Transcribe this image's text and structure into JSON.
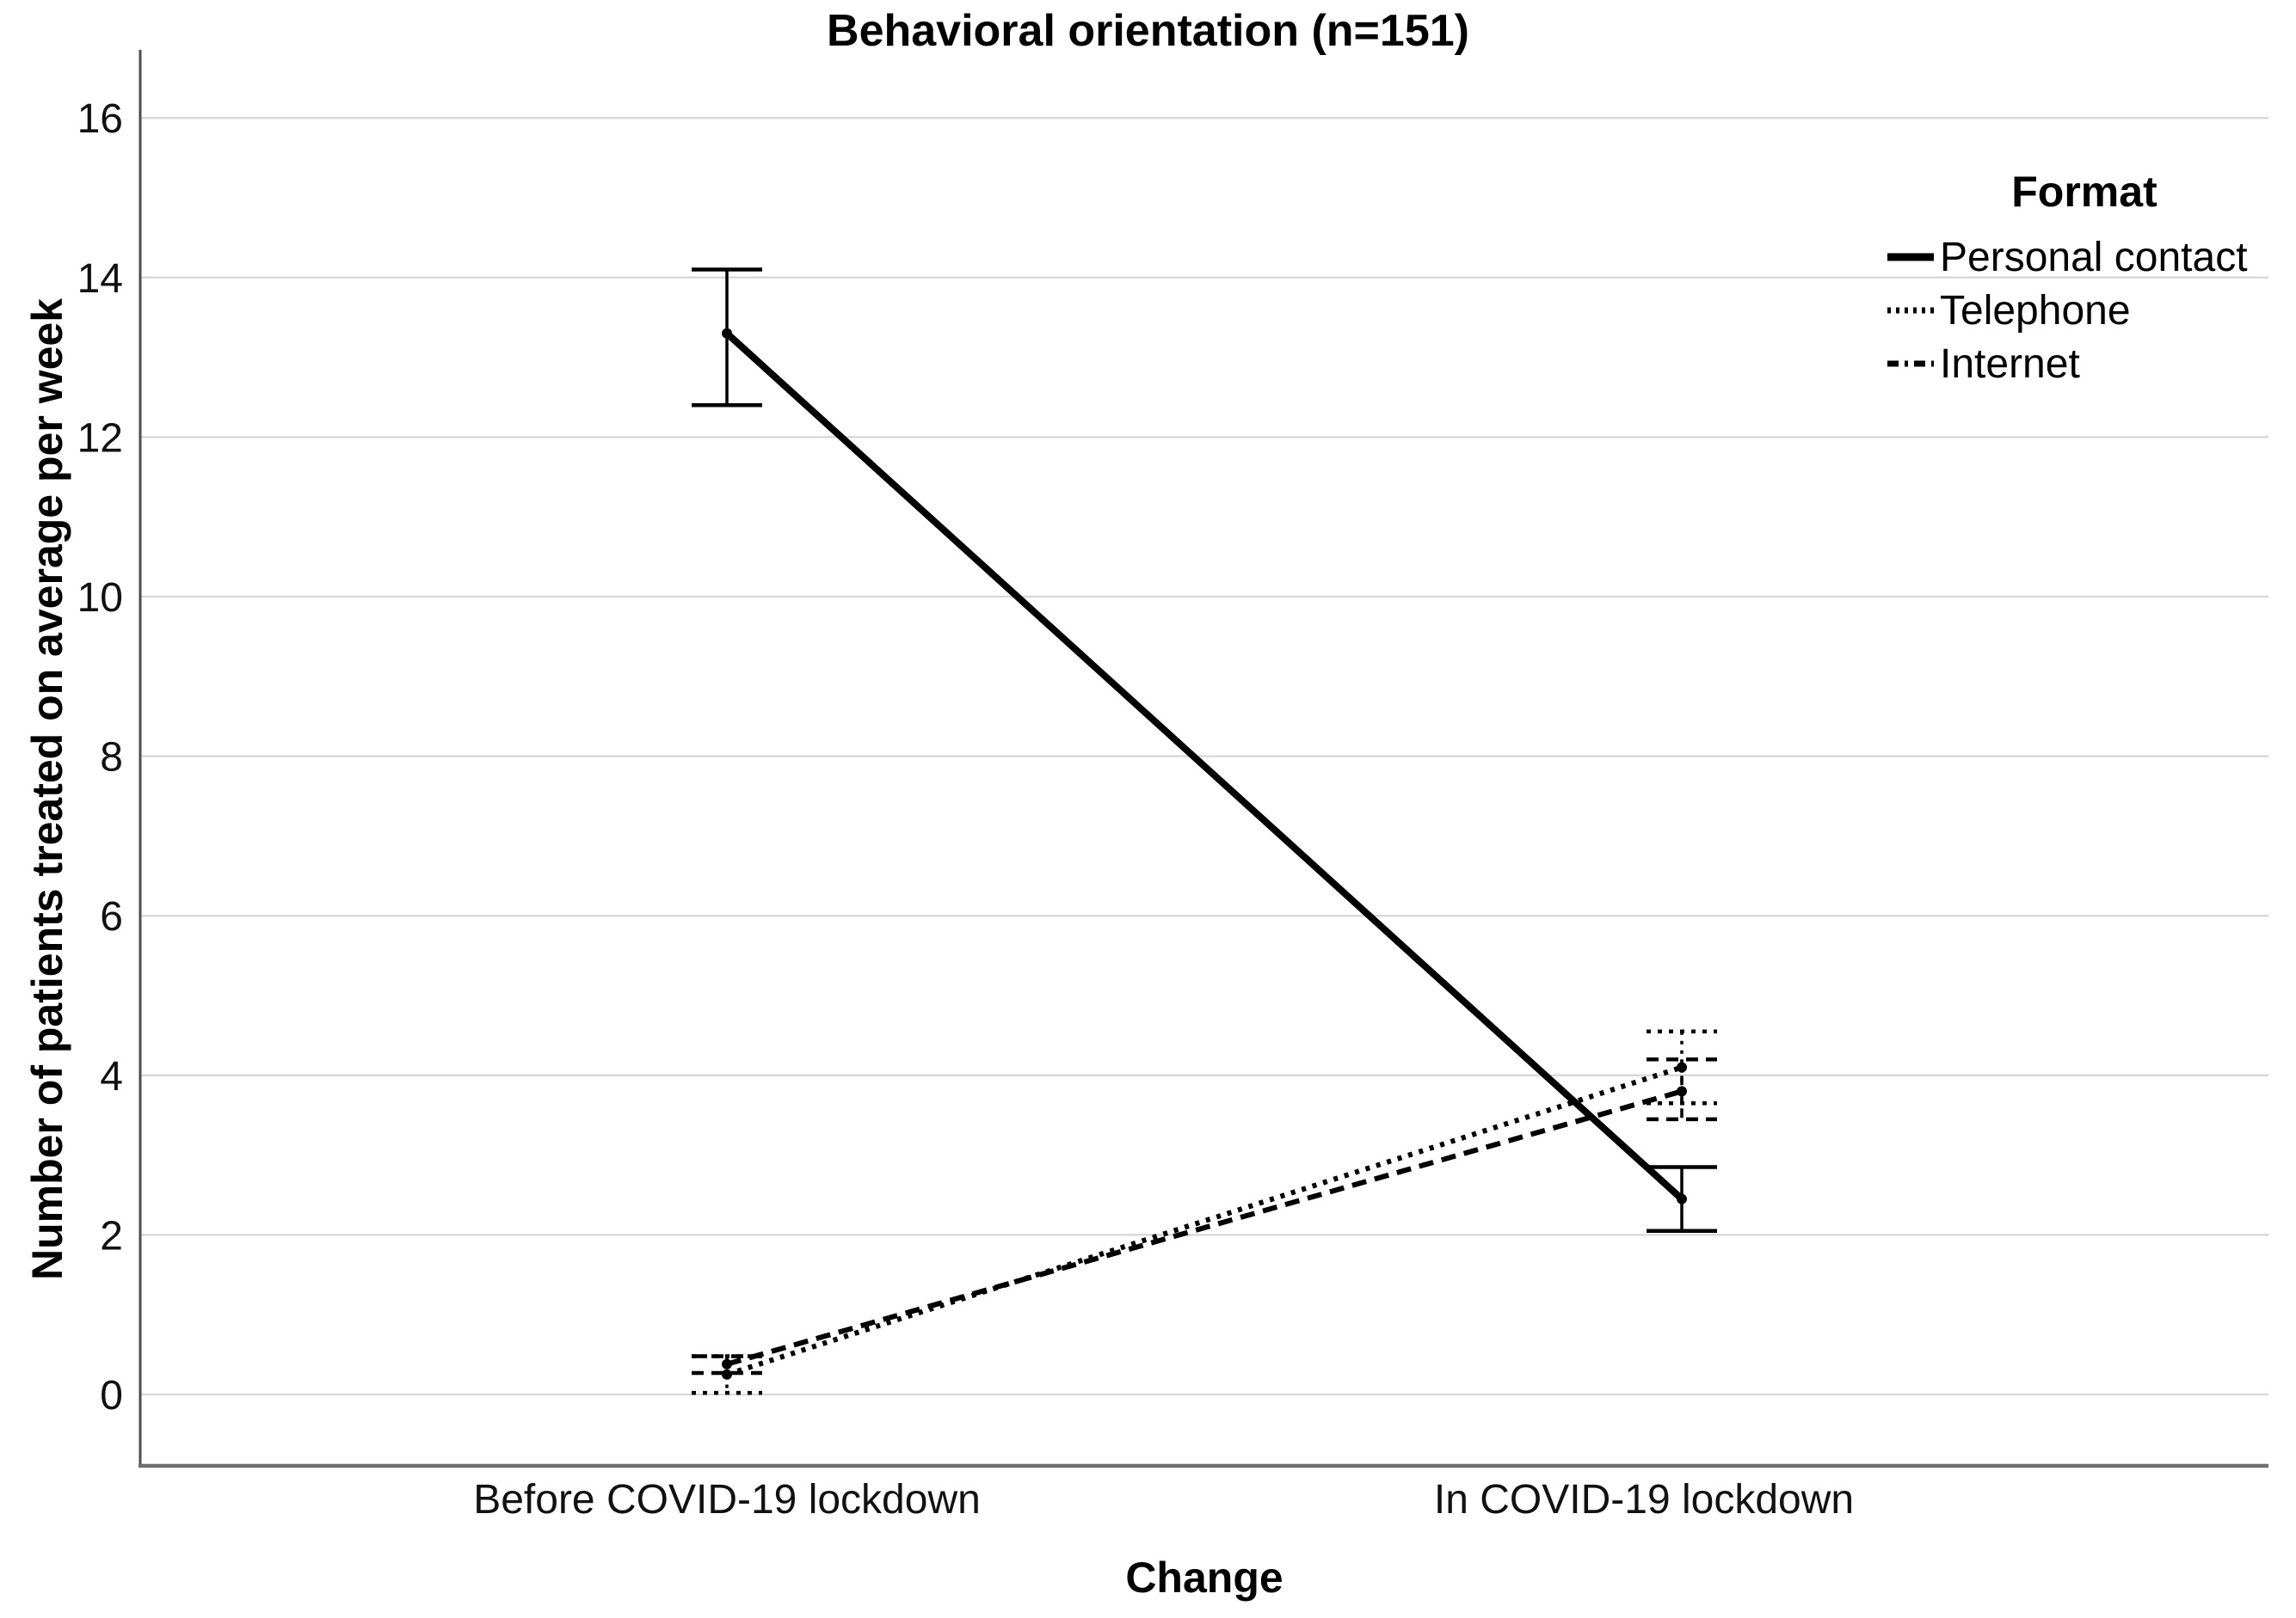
{
  "chart_data": {
    "type": "line",
    "title": "Behavioral orientation (n=151)",
    "xlabel": "Change",
    "ylabel": "Number of patients treated on average per week",
    "categories": [
      "Before COVID-19 lockdown",
      "In COVID-19 lockdown"
    ],
    "yticks": [
      0,
      2,
      4,
      6,
      8,
      10,
      12,
      14,
      16
    ],
    "ylim": [
      -0.9,
      16.85
    ],
    "grid": "horizontal",
    "legend_title": "Format",
    "legend_position": "upper-right-inside",
    "series": [
      {
        "name": "Personal contact",
        "line_style": "solid",
        "values": [
          13.3,
          2.45
        ],
        "ci_low": [
          12.4,
          2.05
        ],
        "ci_high": [
          14.1,
          2.85
        ]
      },
      {
        "name": "Telephone",
        "line_style": "dotted",
        "values": [
          0.25,
          4.1
        ],
        "ci_low": [
          0.02,
          3.65
        ],
        "ci_high": [
          0.48,
          4.55
        ]
      },
      {
        "name": "Internet",
        "line_style": "dashed",
        "values": [
          0.38,
          3.8
        ],
        "ci_low": [
          0.27,
          3.45
        ],
        "ci_high": [
          0.48,
          4.2
        ]
      }
    ],
    "colors": {
      "line": "#000000",
      "grid": "#d9d9d9",
      "axis": "#6f6f6f",
      "text": "#111111"
    }
  }
}
